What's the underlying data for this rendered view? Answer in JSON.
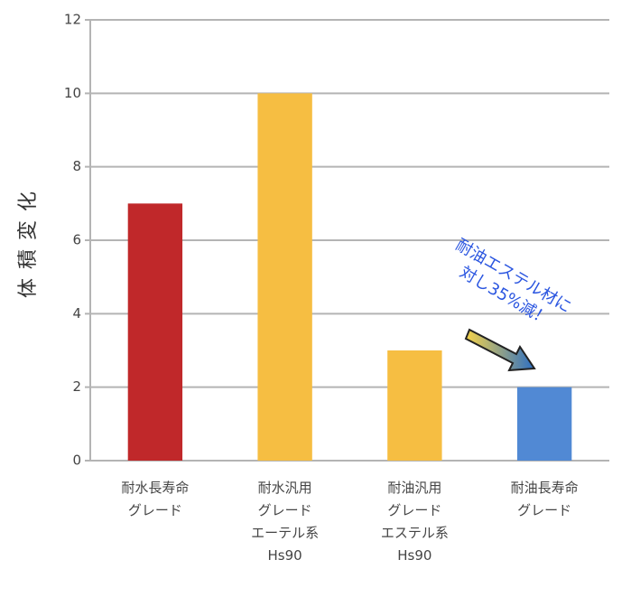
{
  "chart_data": {
    "type": "bar",
    "y_label": "体積変化",
    "categories": [
      [
        "耐水長寿命",
        "グレード"
      ],
      [
        "耐水汎用",
        "グレード",
        "エーテル系",
        "Hs90"
      ],
      [
        "耐油汎用",
        "グレード",
        "エステル系",
        "Hs90"
      ],
      [
        "耐油長寿命",
        "グレード"
      ]
    ],
    "values": [
      7,
      10,
      3,
      2
    ],
    "colors": [
      "#c0282a",
      "#f6be42",
      "#f6be42",
      "#5189d4"
    ],
    "ylim": [
      0,
      12
    ],
    "yticks": [
      0,
      2,
      4,
      6,
      8,
      10,
      12
    ],
    "grid": true,
    "annotation": [
      "耐油エステル材に",
      "対し35%減！"
    ]
  }
}
